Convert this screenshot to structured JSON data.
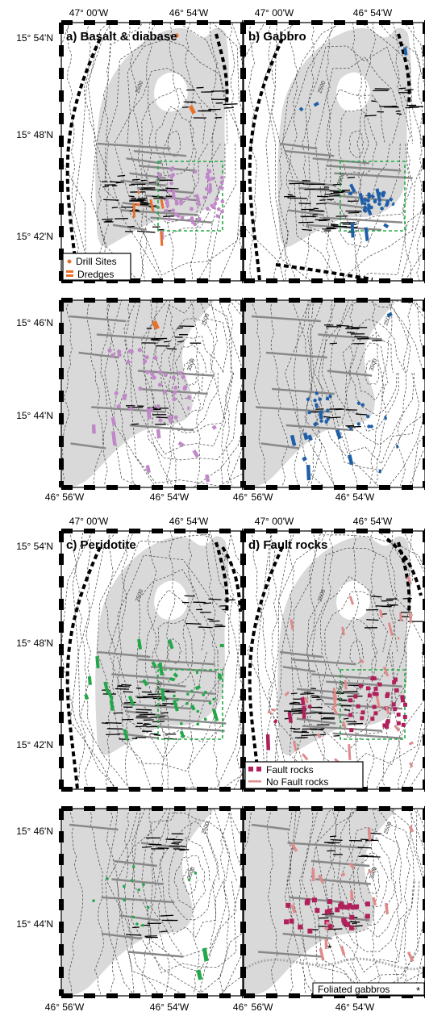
{
  "figure": {
    "top_lon_labels": [
      "47° 00'W",
      "46° 54'W"
    ],
    "lat_labels_large": [
      "15° 54'N",
      "15° 48'N",
      "15° 42'N"
    ],
    "lat_labels_zoom": [
      "15° 46'N",
      "15° 44'N"
    ],
    "bottom_lon_labels_left": [
      "46° 56'W",
      "46° 54'W",
      "46°"
    ],
    "bottom_lon_labels_right": [
      "56'W",
      "46° 54'W",
      "W"
    ],
    "contour_labels": [
      "2500",
      "3500",
      "2500",
      "3500"
    ]
  },
  "panels": {
    "a": {
      "title": "a) Basalt & diabase",
      "title_main": "a) Basalt",
      "title_amp": " & diabase",
      "color": "#e8702a",
      "zoom_color": "#c088c8"
    },
    "b": {
      "title": "b) Gabbro",
      "color": "#1f5fa8"
    },
    "c": {
      "title": "c) Peridotite",
      "color": "#22a84a"
    },
    "d": {
      "title": "d) Fault rocks",
      "color": "#b0205a",
      "secondary_color": "#e08a8a"
    }
  },
  "legends": {
    "a": {
      "drill_sites": "Drill Sites",
      "dredges": "Dredges"
    },
    "d": {
      "fault_rocks": "Fault rocks",
      "no_fault_rocks": "No Fault rocks",
      "foliated_gabbros": "Foliated gabbros"
    }
  },
  "colors": {
    "massif": "#d9d9d9",
    "contour": "#444444",
    "zoom_box": "#22aa44",
    "fault": "#000000",
    "ridge": "#888888"
  }
}
